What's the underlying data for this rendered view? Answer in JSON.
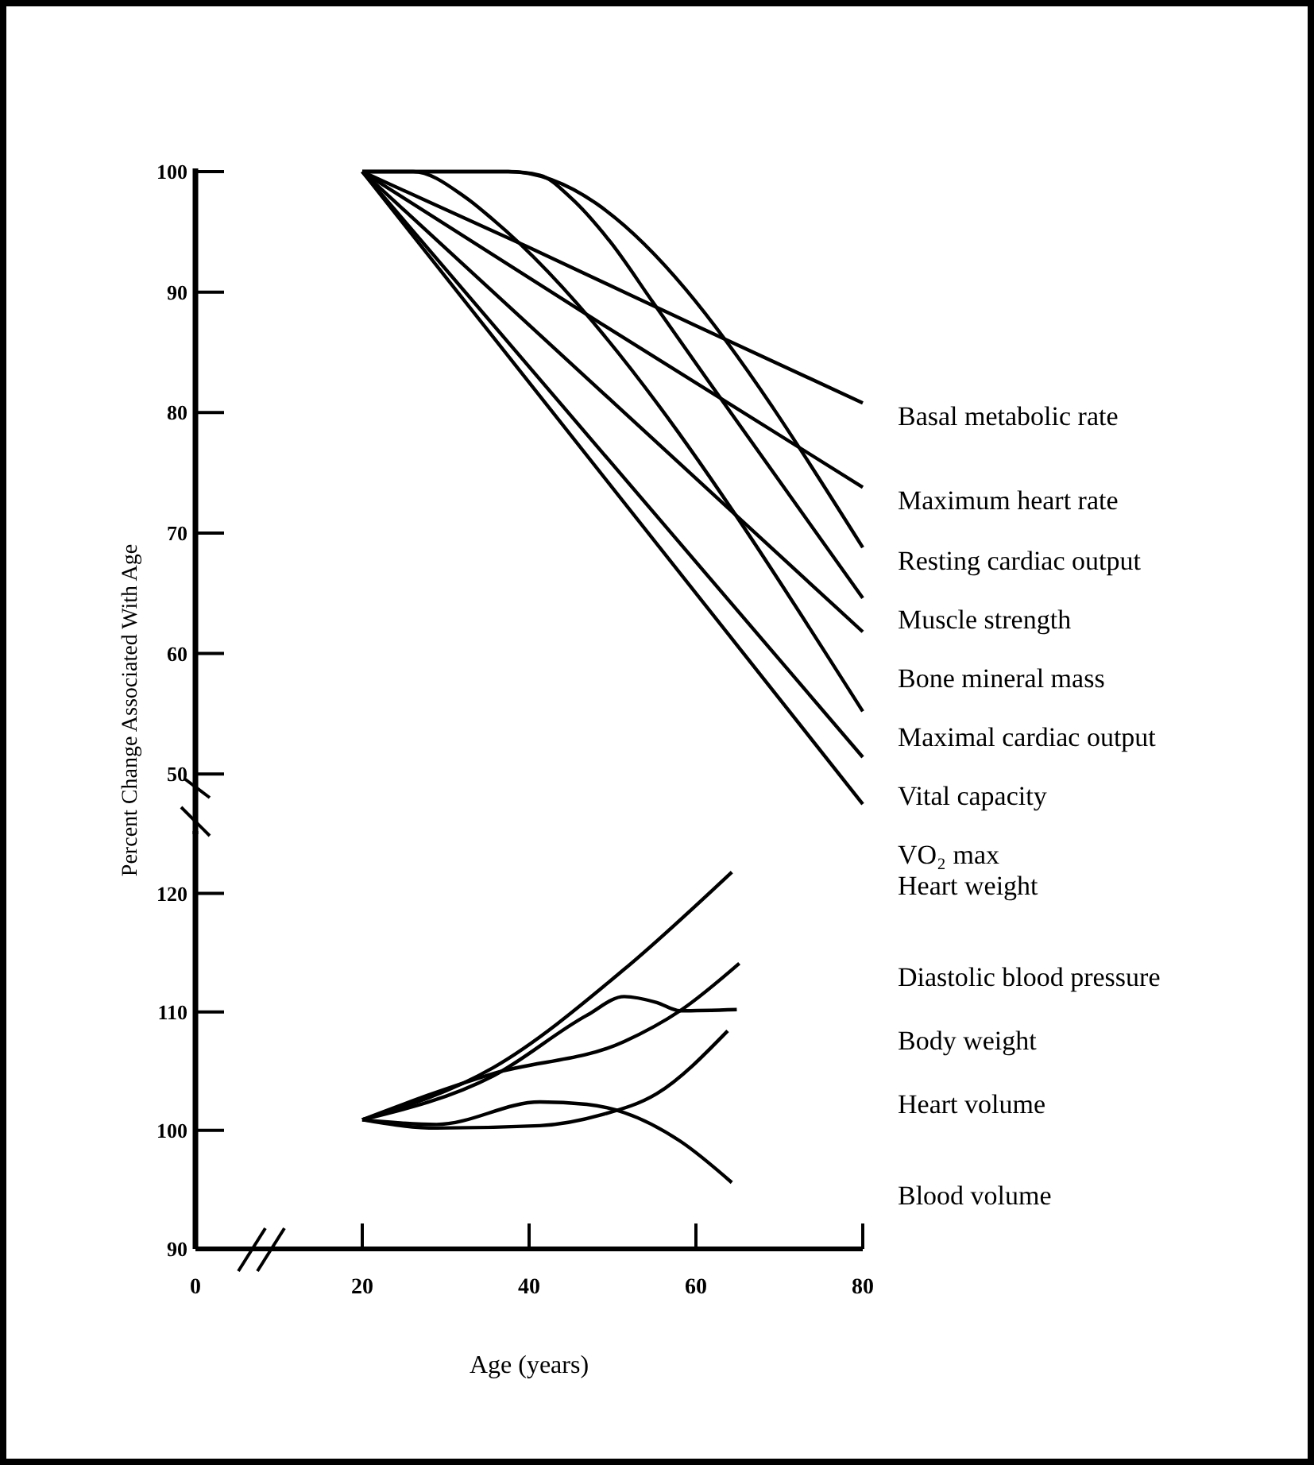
{
  "chart_data": [
    {
      "type": "line",
      "ylabel": "Percent Change Associated With Age",
      "xlim": [
        0,
        80
      ],
      "xticks": [
        0,
        20,
        40,
        60,
        80
      ],
      "ylim": [
        45,
        100
      ],
      "yticks": [
        50,
        60,
        70,
        80,
        90,
        100
      ],
      "tick_labels": "y",
      "series": [
        {
          "name": "Basal metabolic rate",
          "color": "#000000",
          "x": [
            20,
            40,
            60,
            80
          ],
          "values": [
            100,
            93.7,
            87.2,
            80.8
          ]
        },
        {
          "name": "Maximum heart rate",
          "color": "#000000",
          "x": [
            20,
            48.6,
            80
          ],
          "values": [
            100,
            87.4,
            73.8
          ]
        },
        {
          "name": "Resting cardiac output",
          "color": "#000000",
          "x": [
            20,
            37.5,
            80
          ],
          "values": [
            100,
            100,
            68.8
          ]
        },
        {
          "name": "Muscle strength",
          "color": "#000000",
          "x": [
            20,
            37.5,
            41.3,
            45.2,
            49.7,
            54.8,
            61.5,
            80
          ],
          "values": [
            100,
            100,
            99.7,
            97.7,
            94.2,
            89.2,
            82.6,
            64.6
          ]
        },
        {
          "name": "Bone mineral mass",
          "color": "#000000",
          "x": [
            20,
            80
          ],
          "values": [
            100,
            61.8
          ]
        },
        {
          "name": "Maximal cardiac output",
          "color": "#000000",
          "x": [
            20,
            26.1,
            32.3,
            35.7,
            80
          ],
          "values": [
            100,
            100,
            97.9,
            96,
            55.2
          ]
        },
        {
          "name": "Vital capacity",
          "color": "#000000",
          "x": [
            20,
            80
          ],
          "values": [
            100,
            51.4
          ]
        },
        {
          "name": "VO₂ max",
          "color": "#000000",
          "x": [
            20,
            80
          ],
          "values": [
            100,
            47.5
          ]
        }
      ]
    },
    {
      "type": "line",
      "xlabel": "Age (years)",
      "xlim": [
        0,
        80
      ],
      "xticks": [
        0,
        20,
        40,
        60,
        80
      ],
      "ylim": [
        90,
        125
      ],
      "yticks": [
        90,
        100,
        110,
        120
      ],
      "series": [
        {
          "name": "Heart weight",
          "color": "#000000",
          "x": [
            20,
            35.7,
            51.4,
            64.3
          ],
          "values": [
            100.9,
            105.3,
            113.6,
            121.8
          ]
        },
        {
          "name": "Diastolic blood pressure",
          "color": "#000000",
          "x": [
            20,
            35.7,
            51.4,
            58.1,
            65.2
          ],
          "values": [
            100.9,
            104.8,
            107.5,
            110.1,
            114.1
          ]
        },
        {
          "name": "Body weight",
          "color": "#000000",
          "x": [
            20,
            35.7,
            46.9,
            51.4,
            55.3,
            58.1,
            64.9
          ],
          "values": [
            100.9,
            104.6,
            109.7,
            111.3,
            110.8,
            110.1,
            110.2
          ]
        },
        {
          "name": "Heart volume",
          "color": "#000000",
          "x": [
            20,
            28.9,
            41.3,
            48.6,
            55.3,
            63.8
          ],
          "values": [
            100.9,
            100.2,
            100.4,
            101.3,
            103.1,
            108.4
          ]
        },
        {
          "name": "Blood volume",
          "color": "#000000",
          "x": [
            20,
            28.9,
            41.3,
            46.9,
            51.4,
            58.1,
            64.3
          ],
          "values": [
            100.9,
            100.5,
            102.4,
            102.2,
            101.5,
            99.1,
            95.6
          ]
        }
      ]
    }
  ]
}
